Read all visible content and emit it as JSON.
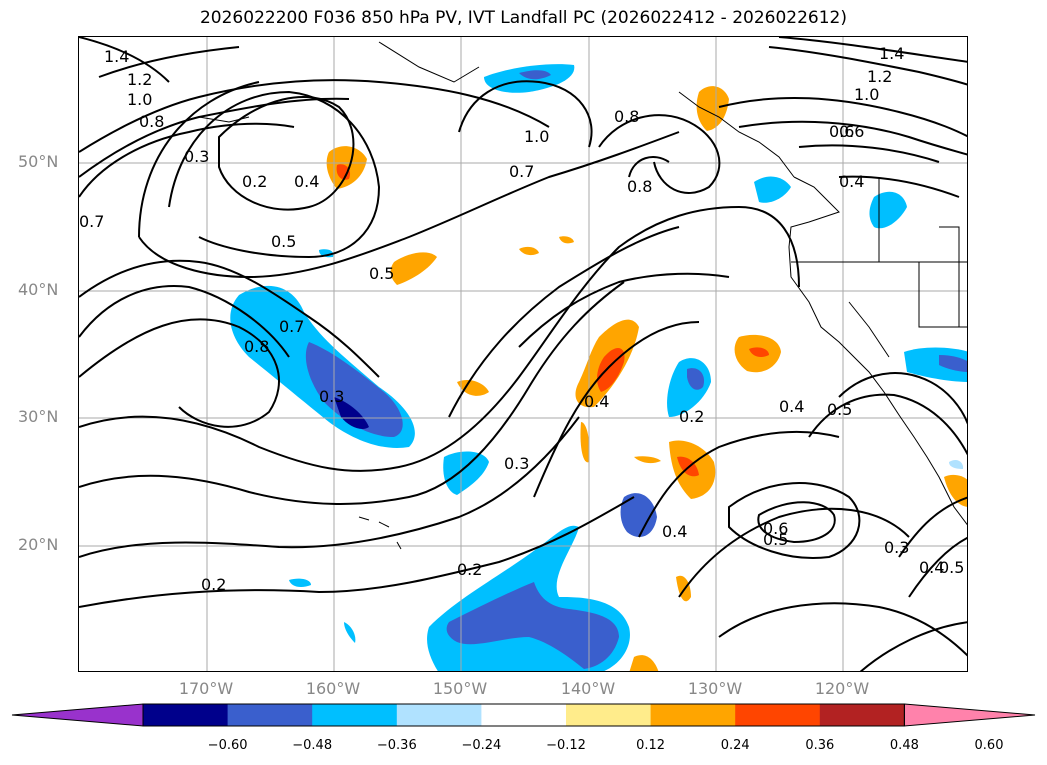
{
  "title": "2026022200 F036 850 hPa PV, IVT Landfall PC (2026022412 - 2026022612)",
  "lat_labels": [
    "50°N",
    "40°N",
    "30°N",
    "20°N"
  ],
  "lon_labels": [
    "170°W",
    "160°W",
    "150°W",
    "140°W",
    "130°W",
    "120°W"
  ],
  "colorbar": {
    "ticks": [
      "−0.60",
      "−0.48",
      "−0.36",
      "−0.24",
      "−0.12",
      "0.12",
      "0.24",
      "0.36",
      "0.48",
      "0.60"
    ],
    "colors": [
      "#9932cc",
      "#00008b",
      "#3a5fcd",
      "#00bfff",
      "#b0e2ff",
      "#ffffff",
      "#ffec8b",
      "#ffa500",
      "#ff4500",
      "#b22222",
      "#ff82ab"
    ]
  },
  "contour_labels": [
    "1.4",
    "1.2",
    "1.0",
    "0.8",
    "0.3",
    "0.2",
    "0.4",
    "0.5",
    "0.7",
    "0.5",
    "0.8",
    "0.7",
    "0.3",
    "1.0",
    "0.7",
    "0.8",
    "0.8",
    "0.6",
    "1.4",
    "1.2",
    "1.0",
    "0.6",
    "0.4",
    "0.4",
    "0.2",
    "0.3",
    "0.4",
    "0.5",
    "0.4",
    "0.6",
    "0.5",
    "0.3",
    "0.4",
    "0.5",
    "0.2",
    "0.2"
  ]
}
